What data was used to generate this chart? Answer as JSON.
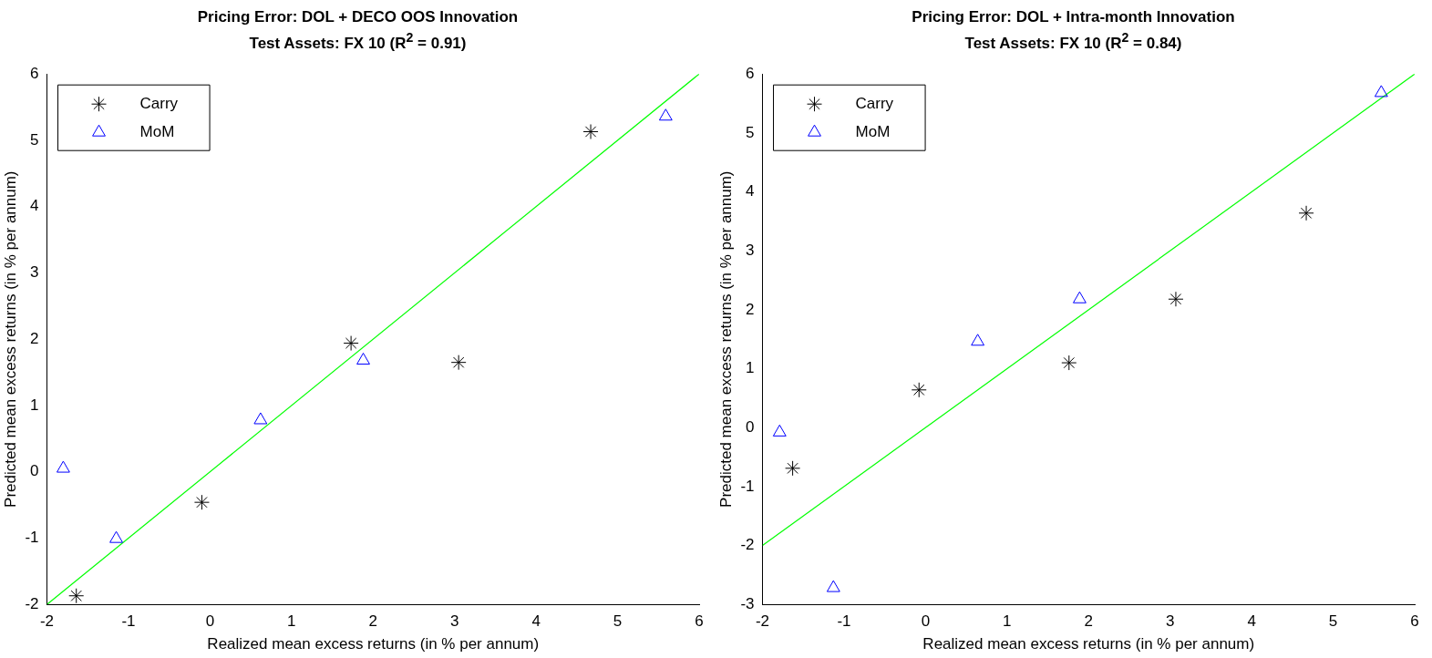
{
  "chart_data": [
    {
      "type": "scatter",
      "title": "Pricing Error: DOL + DECO OOS Innovation",
      "subtitle": "Test Assets: FX 10 (R$^{2}$ = 0.91)",
      "xlabel": "Realized mean excess returns (in % per annum)",
      "ylabel": "Predicted mean excess returns (in % per annum)",
      "xlim": [
        -2,
        6
      ],
      "ylim": [
        -2,
        6
      ],
      "xticks": [
        -2,
        -1,
        0,
        1,
        2,
        3,
        4,
        5,
        6
      ],
      "yticks": [
        -2,
        -1,
        0,
        1,
        2,
        3,
        4,
        5,
        6
      ],
      "grid": false,
      "legend": "top left",
      "series": [
        {
          "name": "Carry",
          "color": "#000000",
          "marker": "cross",
          "x": [
            -1.64,
            -0.1,
            1.73,
            3.05,
            4.67
          ],
          "values": [
            -1.87,
            -0.46,
            1.94,
            1.65,
            5.13
          ]
        },
        {
          "name": "MoM",
          "color": "#0000ff",
          "marker": "triangle",
          "x": [
            -1.8,
            -1.15,
            0.62,
            1.88,
            5.59
          ],
          "values": [
            0.05,
            -1.01,
            0.78,
            1.68,
            5.36
          ]
        },
        {
          "type": "line",
          "color": "#00ff00",
          "marker": "none",
          "x": [
            -2,
            6
          ],
          "values": [
            -2,
            6
          ]
        }
      ]
    },
    {
      "type": "scatter",
      "title": "Pricing Error: DOL + Intra-month Innovation",
      "subtitle": "Test Assets: FX 10 (R$^{2}$ = 0.84)",
      "xlabel": "Realized mean excess returns (in % per annum)",
      "ylabel": "Predicted mean excess returns (in % per annum)",
      "xlim": [
        -2,
        6
      ],
      "ylim": [
        -3,
        6
      ],
      "xticks": [
        -2,
        -1,
        0,
        1,
        2,
        3,
        4,
        5,
        6
      ],
      "yticks": [
        -3,
        -2,
        -1,
        0,
        1,
        2,
        3,
        4,
        5,
        6
      ],
      "grid": false,
      "legend": "top left",
      "series": [
        {
          "name": "Carry",
          "color": "#000000",
          "marker": "cross",
          "x": [
            -1.63,
            -0.08,
            1.76,
            3.07,
            4.67
          ],
          "values": [
            -0.69,
            0.64,
            1.1,
            2.18,
            3.64
          ]
        },
        {
          "name": "MoM",
          "color": "#0000ff",
          "marker": "triangle",
          "x": [
            -1.79,
            -1.13,
            0.64,
            1.89,
            5.59
          ],
          "values": [
            -0.08,
            -2.72,
            1.46,
            2.18,
            5.68
          ]
        },
        {
          "type": "line",
          "color": "#00ff00",
          "marker": "none",
          "x": [
            -2,
            6
          ],
          "values": [
            -2,
            6
          ]
        }
      ]
    }
  ]
}
